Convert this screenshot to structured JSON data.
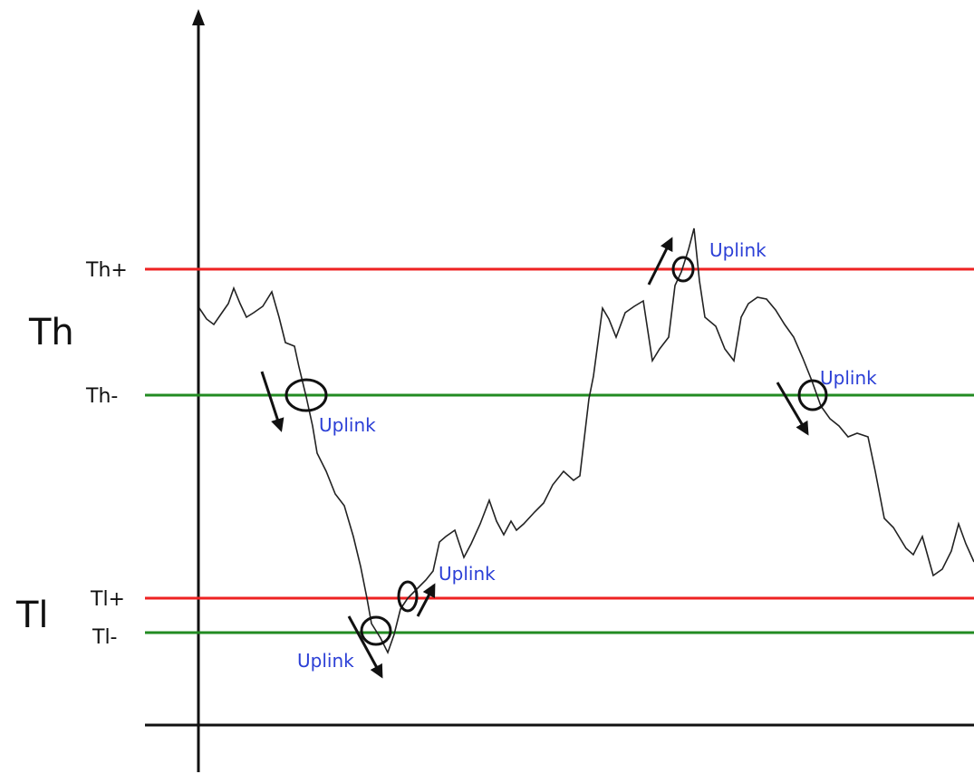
{
  "labels": {
    "group_high": "Th",
    "group_low": "Tl"
  },
  "colors": {
    "upper_threshold": "#ee2222",
    "lower_threshold": "#228b22",
    "signal": "#222222",
    "axis": "#111111",
    "event_text": "#2b3fd6"
  },
  "thresholds": [
    {
      "id": "th-plus",
      "label": "Th+",
      "color": "#ee2222"
    },
    {
      "id": "th-minus",
      "label": "Th-",
      "color": "#228b22"
    },
    {
      "id": "tl-plus",
      "label": "Tl+",
      "color": "#ee2222"
    },
    {
      "id": "tl-minus",
      "label": "Tl-",
      "color": "#228b22"
    }
  ],
  "events": [
    {
      "id": "event-1",
      "label": "Uplink",
      "direction": "down"
    },
    {
      "id": "event-2",
      "label": "Uplink",
      "direction": "down"
    },
    {
      "id": "event-3",
      "label": "Uplink",
      "direction": "up"
    },
    {
      "id": "event-4",
      "label": "Uplink",
      "direction": "up"
    },
    {
      "id": "event-5",
      "label": "Uplink",
      "direction": "down"
    }
  ]
}
